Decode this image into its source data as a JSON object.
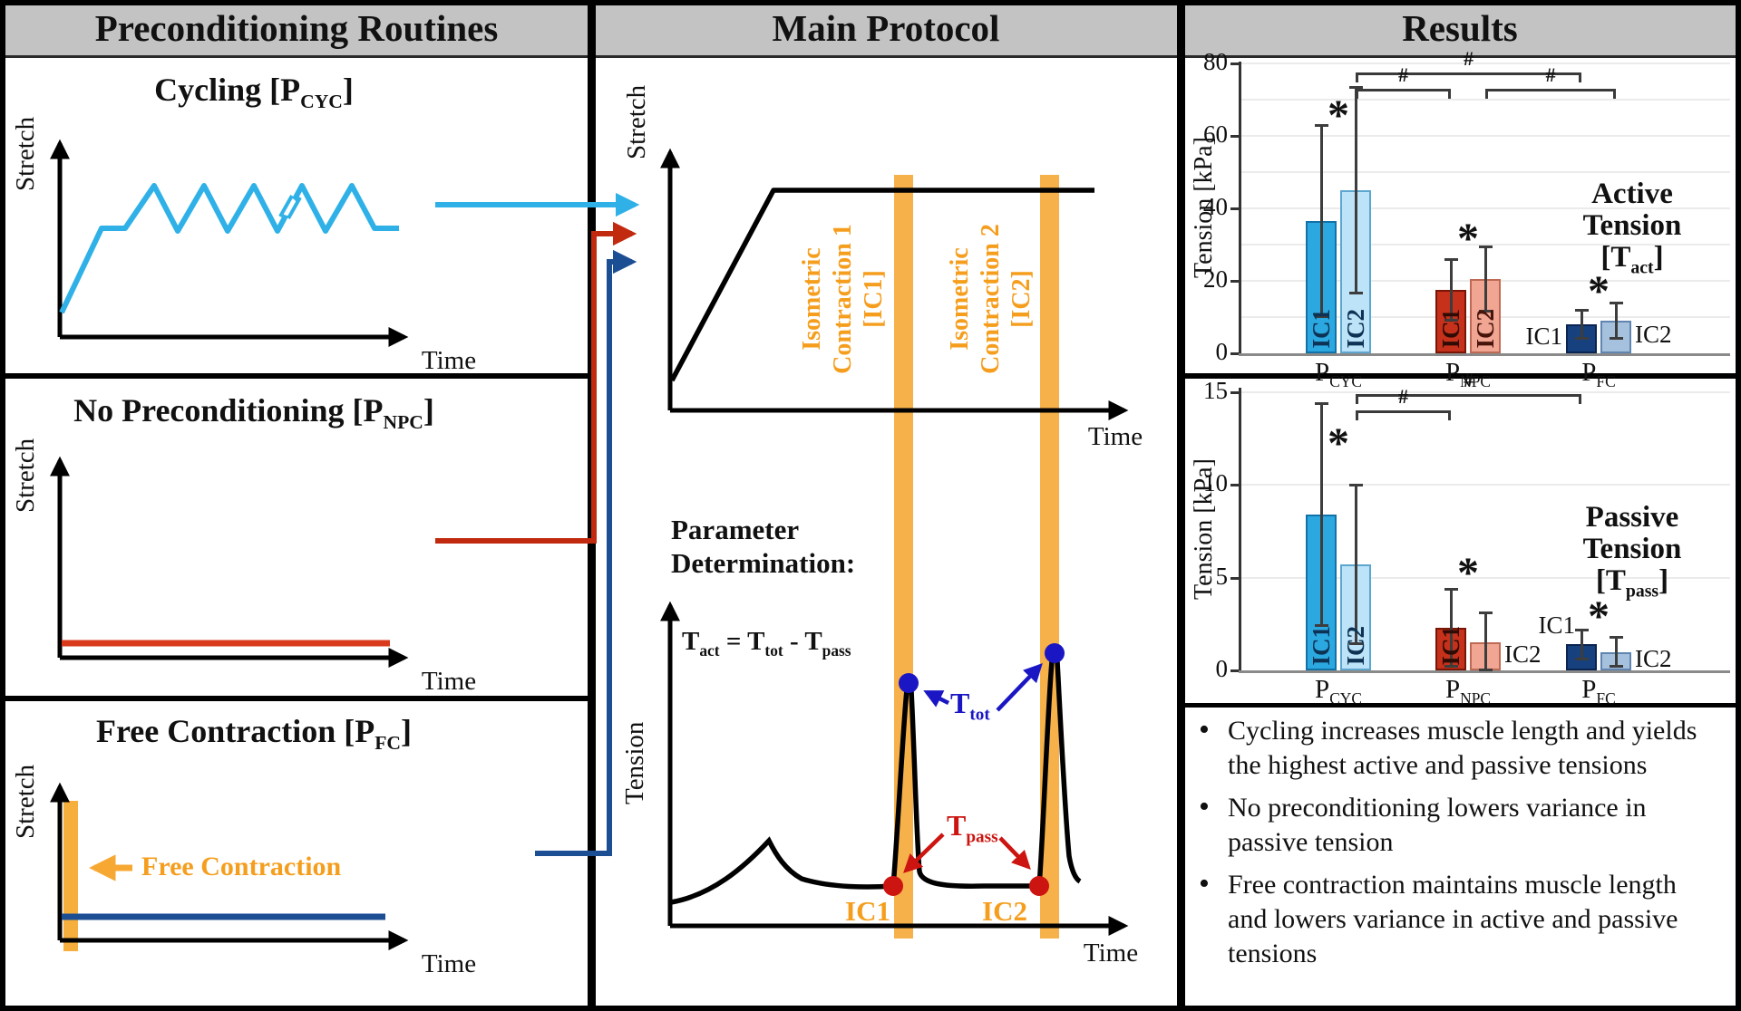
{
  "headers": {
    "preconditioning": "Preconditioning Routines",
    "main": "Main Protocol",
    "results": "Results"
  },
  "axis": {
    "stretch": "Stretch",
    "time": "Time",
    "tension": "Tension"
  },
  "panels": {
    "cycling": {
      "title": {
        "pre": "Cycling [P",
        "sub": "CYC",
        "post": "]"
      }
    },
    "npc": {
      "title": {
        "pre": "No Preconditioning [P",
        "sub": "NPC",
        "post": "]"
      }
    },
    "fc": {
      "title": {
        "pre": "Free Contraction [P",
        "sub": "FC",
        "post": "]"
      },
      "annotation": "Free Contraction"
    },
    "main_top": {
      "ic1_lines": [
        "Isometric",
        "Contraction 1",
        "[IC1]"
      ],
      "ic2_lines": [
        "Isometric",
        "Contraction 2",
        "[IC2]"
      ]
    },
    "param": {
      "heading": [
        "Parameter",
        "Determination:"
      ],
      "formula": [
        {
          "t": "T",
          "s": "act"
        },
        {
          "t": " = "
        },
        {
          "t": "T",
          "s": "tot"
        },
        {
          "t": " - "
        },
        {
          "t": "T",
          "s": "pass"
        }
      ],
      "t_tot": {
        "pre": "T",
        "sub": "tot"
      },
      "t_pass": {
        "pre": "T",
        "sub": "pass"
      },
      "ic1": "IC1",
      "ic2": "IC2"
    }
  },
  "chart_data": [
    {
      "type": "bar",
      "name": "active_tension",
      "title": [
        {
          "t": "Active"
        },
        {
          "t": "Tension"
        },
        {
          "t": "[T",
          "s": "act",
          "post": "]"
        }
      ],
      "ylabel": "Tension [kPa]",
      "ylim": [
        0,
        80
      ],
      "yticks": [
        0,
        20,
        40,
        60,
        80
      ],
      "categories": [
        "P_CYC",
        "P_NPC",
        "P_FC"
      ],
      "groups": [
        {
          "label": {
            "pre": "P",
            "sub": "CYC"
          },
          "bars": [
            {
              "name": "IC1",
              "value": 36.5,
              "err_hi": 63,
              "err_lo": 10,
              "color": "#2CA8E0",
              "border": "#1172A8",
              "label_pos": "inside",
              "label_color": "#0D3254"
            },
            {
              "name": "IC2",
              "value": 45,
              "err_hi": 73.5,
              "err_lo": 16.5,
              "color": "#BCE3F8",
              "border": "#5CA6D0",
              "label_pos": "inside",
              "label_color": "#0D3254"
            }
          ]
        },
        {
          "label": {
            "pre": "P",
            "sub": "NPC"
          },
          "bars": [
            {
              "name": "IC1",
              "value": 17.5,
              "err_hi": 26,
              "err_lo": 9,
              "color": "#C5311B",
              "border": "#7A1605",
              "label_pos": "inside",
              "label_color": "#2E0B04"
            },
            {
              "name": "IC2",
              "value": 20.5,
              "err_hi": 29.5,
              "err_lo": 11.5,
              "color": "#F0A692",
              "border": "#BE6A55",
              "label_pos": "inside",
              "label_color": "#47140B"
            }
          ]
        },
        {
          "label": {
            "pre": "P",
            "sub": "FC"
          },
          "bars": [
            {
              "name": "IC1",
              "value": 8,
              "err_hi": 12,
              "err_lo": 4,
              "color": "#16407E",
              "border": "#0B2451",
              "label_pos": "left",
              "label_color": "#111111"
            },
            {
              "name": "IC2",
              "value": 9,
              "err_hi": 14,
              "err_lo": 4,
              "color": "#A6C1DD",
              "border": "#5F85B0",
              "label_pos": "right",
              "label_color": "#111111"
            }
          ]
        }
      ],
      "stars": [
        {
          "symbol": "*",
          "group": 0,
          "y": 66
        },
        {
          "symbol": "*",
          "group": 1,
          "y": 32
        },
        {
          "symbol": "*",
          "group": 2,
          "y": 17.5
        }
      ],
      "brackets": [
        {
          "label": "#",
          "from": [
            0,
            1
          ],
          "to": [
            2,
            0
          ],
          "y": 77.5
        },
        {
          "label": "#",
          "from": [
            0,
            1
          ],
          "to": [
            1,
            0
          ],
          "y": 73
        },
        {
          "label": "#",
          "from": [
            1,
            1
          ],
          "to": [
            2,
            1
          ],
          "y": 73
        }
      ]
    },
    {
      "type": "bar",
      "name": "passive_tension",
      "title": [
        {
          "t": "Passive"
        },
        {
          "t": "Tension"
        },
        {
          "t": "[T",
          "s": "pass",
          "post": "]"
        }
      ],
      "ylabel": "Tension [kPa]",
      "ylim": [
        0,
        15
      ],
      "yticks": [
        0,
        5,
        10,
        15
      ],
      "categories": [
        "P_CYC",
        "P_NPC",
        "P_FC"
      ],
      "groups": [
        {
          "label": {
            "pre": "P",
            "sub": "CYC"
          },
          "bars": [
            {
              "name": "IC1",
              "value": 8.4,
              "err_hi": 14.4,
              "err_lo": 2.4,
              "color": "#2CA8E0",
              "border": "#1172A8",
              "label_pos": "inside",
              "label_color": "#0D3254"
            },
            {
              "name": "IC2",
              "value": 5.7,
              "err_hi": 10,
              "err_lo": 1.4,
              "color": "#BCE3F8",
              "border": "#5CA6D0",
              "label_pos": "inside",
              "label_color": "#0D3254"
            }
          ]
        },
        {
          "label": {
            "pre": "P",
            "sub": "NPC"
          },
          "bars": [
            {
              "name": "IC1",
              "value": 2.3,
              "err_hi": 4.4,
              "err_lo": 0.2,
              "color": "#C5311B",
              "border": "#7A1605",
              "label_pos": "inside",
              "label_color": "#2E0B04"
            },
            {
              "name": "IC2",
              "value": 1.5,
              "err_hi": 3.1,
              "err_lo": 0,
              "color": "#F0A692",
              "border": "#BE6A55",
              "label_pos": "right",
              "label_color": "#111111"
            }
          ]
        },
        {
          "label": {
            "pre": "P",
            "sub": "FC"
          },
          "bars": [
            {
              "name": "IC1",
              "value": 1.4,
              "err_hi": 2.2,
              "err_lo": 0.6,
              "color": "#16407E",
              "border": "#0B2451",
              "label_pos": "above_left",
              "label_color": "#111111"
            },
            {
              "name": "IC2",
              "value": 1.0,
              "err_hi": 1.8,
              "err_lo": 0.2,
              "color": "#A6C1DD",
              "border": "#5F85B0",
              "label_pos": "right",
              "label_color": "#111111"
            }
          ]
        }
      ],
      "stars": [
        {
          "symbol": "*",
          "group": 0,
          "y": 12.3
        },
        {
          "symbol": "*",
          "group": 1,
          "y": 5.3
        },
        {
          "symbol": "*",
          "group": 2,
          "y": 3.0
        }
      ],
      "brackets": [
        {
          "label": "#",
          "from": [
            0,
            1
          ],
          "to": [
            2,
            0
          ],
          "y": 14.9
        },
        {
          "label": "#",
          "from": [
            0,
            1
          ],
          "to": [
            1,
            0
          ],
          "y": 14.0
        }
      ]
    }
  ],
  "bullets": [
    "Cycling increases muscle length and yields the highest active and passive tensions",
    "No preconditioning lowers variance in passive tension",
    "Free contraction maintains muscle length and lowers variance in active and passive tensions"
  ],
  "colors": {
    "header_gray": "#C3C3C3",
    "cyan": "#2FB1E8",
    "red": "#D93A1C",
    "dark_blue": "#1C4E94",
    "orange": "#F6A832",
    "band_orange": "#F7B14A",
    "t_tot_blue": "#1A16C4",
    "t_pass_red": "#CC1410",
    "gridline": "#EBEBEB",
    "baseline_gray": "#8A8A8A",
    "error_bar": "#3D3D3D"
  }
}
